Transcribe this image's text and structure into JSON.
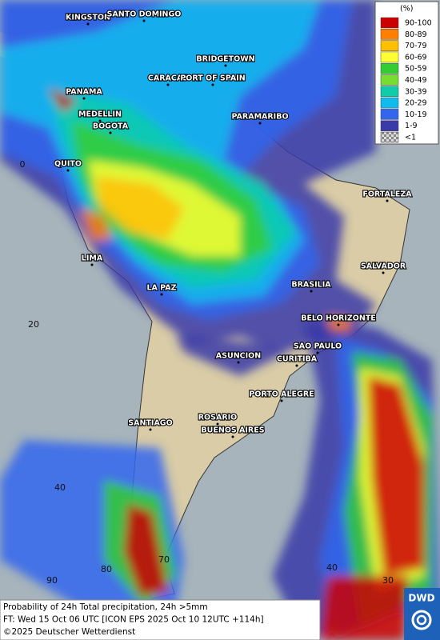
{
  "legend": {
    "unit": "(%)",
    "entries": [
      {
        "label": "90-100",
        "color": "#cc0000"
      },
      {
        "label": "80-89",
        "color": "#ff7f00"
      },
      {
        "label": "70-79",
        "color": "#ffc000"
      },
      {
        "label": "60-69",
        "color": "#ffff33"
      },
      {
        "label": "50-59",
        "color": "#33cc33"
      },
      {
        "label": "40-49",
        "color": "#77dd33"
      },
      {
        "label": "30-39",
        "color": "#11ccaa"
      },
      {
        "label": "20-29",
        "color": "#11bbee"
      },
      {
        "label": "10-19",
        "color": "#3366ee"
      },
      {
        "label": "1-9",
        "color": "#3a3aa8"
      },
      {
        "label": "<1",
        "color": "#aaaaaa"
      }
    ]
  },
  "cities": [
    "KINGSTON",
    "SANTO DOMINGO",
    "BRIDGETOWN",
    "CARACAS",
    "PORT OF SPAIN",
    "PANAMA",
    "MEDELLIN",
    "BOGOTA",
    "PARAMARIBO",
    "QUITO",
    "FORTALEZA",
    "LIMA",
    "SALVADOR",
    "BRASILIA",
    "LA PAZ",
    "BELO HORIZONTE",
    "SAO PAULO",
    "ASUNCION",
    "CURITIBA",
    "PORTO ALEGRE",
    "ROSARIO",
    "SANTIAGO",
    "BUENOS AIRES"
  ],
  "grid_labels": [
    "0",
    "20",
    "40",
    "90",
    "80",
    "70",
    "40",
    "30"
  ],
  "footer": {
    "lines": [
      "Probability of 24h Total precipitation, 24h >5mm",
      "FT: Wed 15 Oct 06 UTC [ICON EPS 2025 Oct 10 12UTC +114h]",
      "©2025 Deutscher Wetterdienst"
    ]
  },
  "logo": "DWD"
}
